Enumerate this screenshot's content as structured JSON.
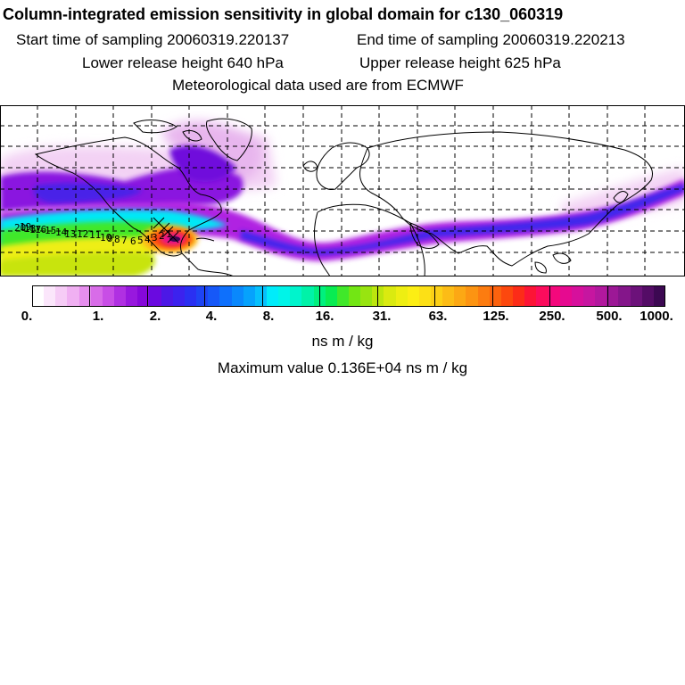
{
  "header": {
    "title": "Column-integrated emission sensitivity in global domain for c130_060319",
    "start_label": "Start time of sampling 20060319.220137",
    "end_label": "End time of sampling 20060319.220213",
    "lower_label": "Lower release height  640 hPa",
    "upper_label": "Upper release height  625 hPa",
    "met_label": "Meteorological data used are from ECMWF"
  },
  "map": {
    "trajectory_labels": [
      "20",
      "19",
      "18",
      "17",
      "16",
      "15",
      "14",
      "13",
      "12",
      "11",
      "10",
      "9",
      "8",
      "7",
      "6",
      "5",
      "4",
      "3",
      "2",
      "1"
    ],
    "trajectory_color": "#000000",
    "coast_color": "#000000"
  },
  "colorbar": {
    "tick_labels": [
      "0.",
      "1.",
      "2.",
      "4.",
      "8.",
      "16.",
      "31.",
      "63.",
      "125.",
      "250.",
      "500.",
      "1000."
    ],
    "colors": [
      "#ffffff",
      "#fbe6fb",
      "#f6ccf6",
      "#f0b0f2",
      "#e68eee",
      "#d86ce8",
      "#c84ee6",
      "#b030e2",
      "#9818de",
      "#8608da",
      "#6a0ae0",
      "#4c18e6",
      "#3c22ee",
      "#2a30f2",
      "#1e44f4",
      "#1658f8",
      "#0e70fc",
      "#0a88fc",
      "#06a2fc",
      "#06c0fc",
      "#00ecfa",
      "#00f4e8",
      "#00f4cc",
      "#00f2a8",
      "#00f07e",
      "#08ec52",
      "#40e82a",
      "#72e614",
      "#98e410",
      "#bce60e",
      "#daea10",
      "#eeee12",
      "#fcee14",
      "#fce016",
      "#fcd016",
      "#fcbc16",
      "#fca814",
      "#fc9412",
      "#fc7c10",
      "#fc620e",
      "#fc480e",
      "#fc2c18",
      "#fc1436",
      "#fc0c5c",
      "#f4087c",
      "#e60a90",
      "#d6109c",
      "#c616a0",
      "#b2189e",
      "#9c1896",
      "#84168a",
      "#6c127a",
      "#540c66",
      "#3c0852"
    ],
    "units": "ns m / kg",
    "max_value": "Maximum value  0.136E+04 ns m / kg"
  }
}
